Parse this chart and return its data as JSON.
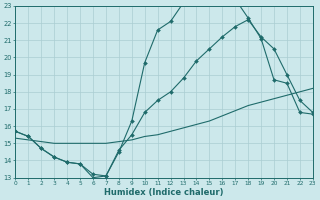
{
  "xlabel": "Humidex (Indice chaleur)",
  "bg_color": "#cce8eb",
  "grid_color": "#aacdd2",
  "line_color": "#1f6b6b",
  "xmin": 0,
  "xmax": 23,
  "ymin": 13,
  "ymax": 23,
  "line1_x": [
    0,
    1,
    2,
    3,
    4,
    5,
    6,
    7,
    8,
    9,
    10,
    11,
    12,
    13,
    14,
    15,
    16,
    17,
    18,
    19,
    20,
    21,
    22,
    23
  ],
  "line1_y": [
    15.7,
    15.4,
    14.7,
    14.2,
    13.9,
    13.8,
    13.0,
    13.1,
    14.5,
    16.3,
    19.7,
    21.6,
    22.1,
    23.2,
    23.5,
    23.2,
    23.3,
    23.4,
    22.3,
    21.1,
    18.7,
    18.5,
    16.8,
    16.7
  ],
  "line2_x": [
    0,
    1,
    2,
    3,
    4,
    5,
    6,
    7,
    8,
    9,
    10,
    11,
    12,
    13,
    14,
    15,
    16,
    17,
    18,
    19,
    20,
    21,
    22,
    23
  ],
  "line2_y": [
    15.7,
    15.4,
    14.7,
    14.2,
    13.9,
    13.8,
    13.2,
    13.1,
    14.6,
    15.5,
    16.8,
    17.5,
    18.0,
    18.8,
    19.8,
    20.5,
    21.2,
    21.8,
    22.2,
    21.2,
    20.5,
    19.0,
    17.5,
    16.8
  ],
  "line3_x": [
    0,
    1,
    2,
    3,
    4,
    5,
    6,
    7,
    8,
    9,
    10,
    11,
    12,
    13,
    14,
    15,
    16,
    17,
    18,
    19,
    20,
    21,
    22,
    23
  ],
  "line3_y": [
    15.3,
    15.2,
    15.1,
    15.0,
    15.0,
    15.0,
    15.0,
    15.0,
    15.1,
    15.2,
    15.4,
    15.5,
    15.7,
    15.9,
    16.1,
    16.3,
    16.6,
    16.9,
    17.2,
    17.4,
    17.6,
    17.8,
    18.0,
    18.2
  ]
}
